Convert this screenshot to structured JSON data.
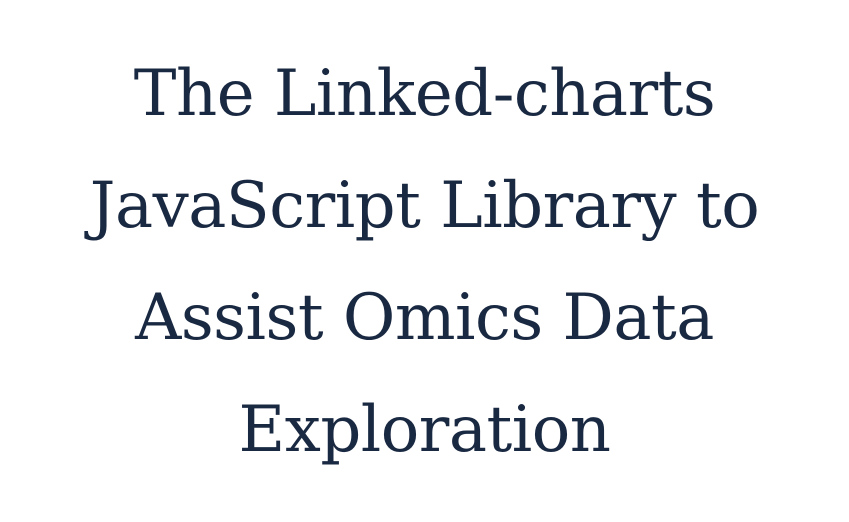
{
  "title": {
    "lines": [
      "The Linked-charts",
      "JavaScript Library to",
      "Assist Omics Data",
      "Exploration"
    ]
  },
  "colors": {
    "text": "#1a2942",
    "background": "#ffffff"
  }
}
